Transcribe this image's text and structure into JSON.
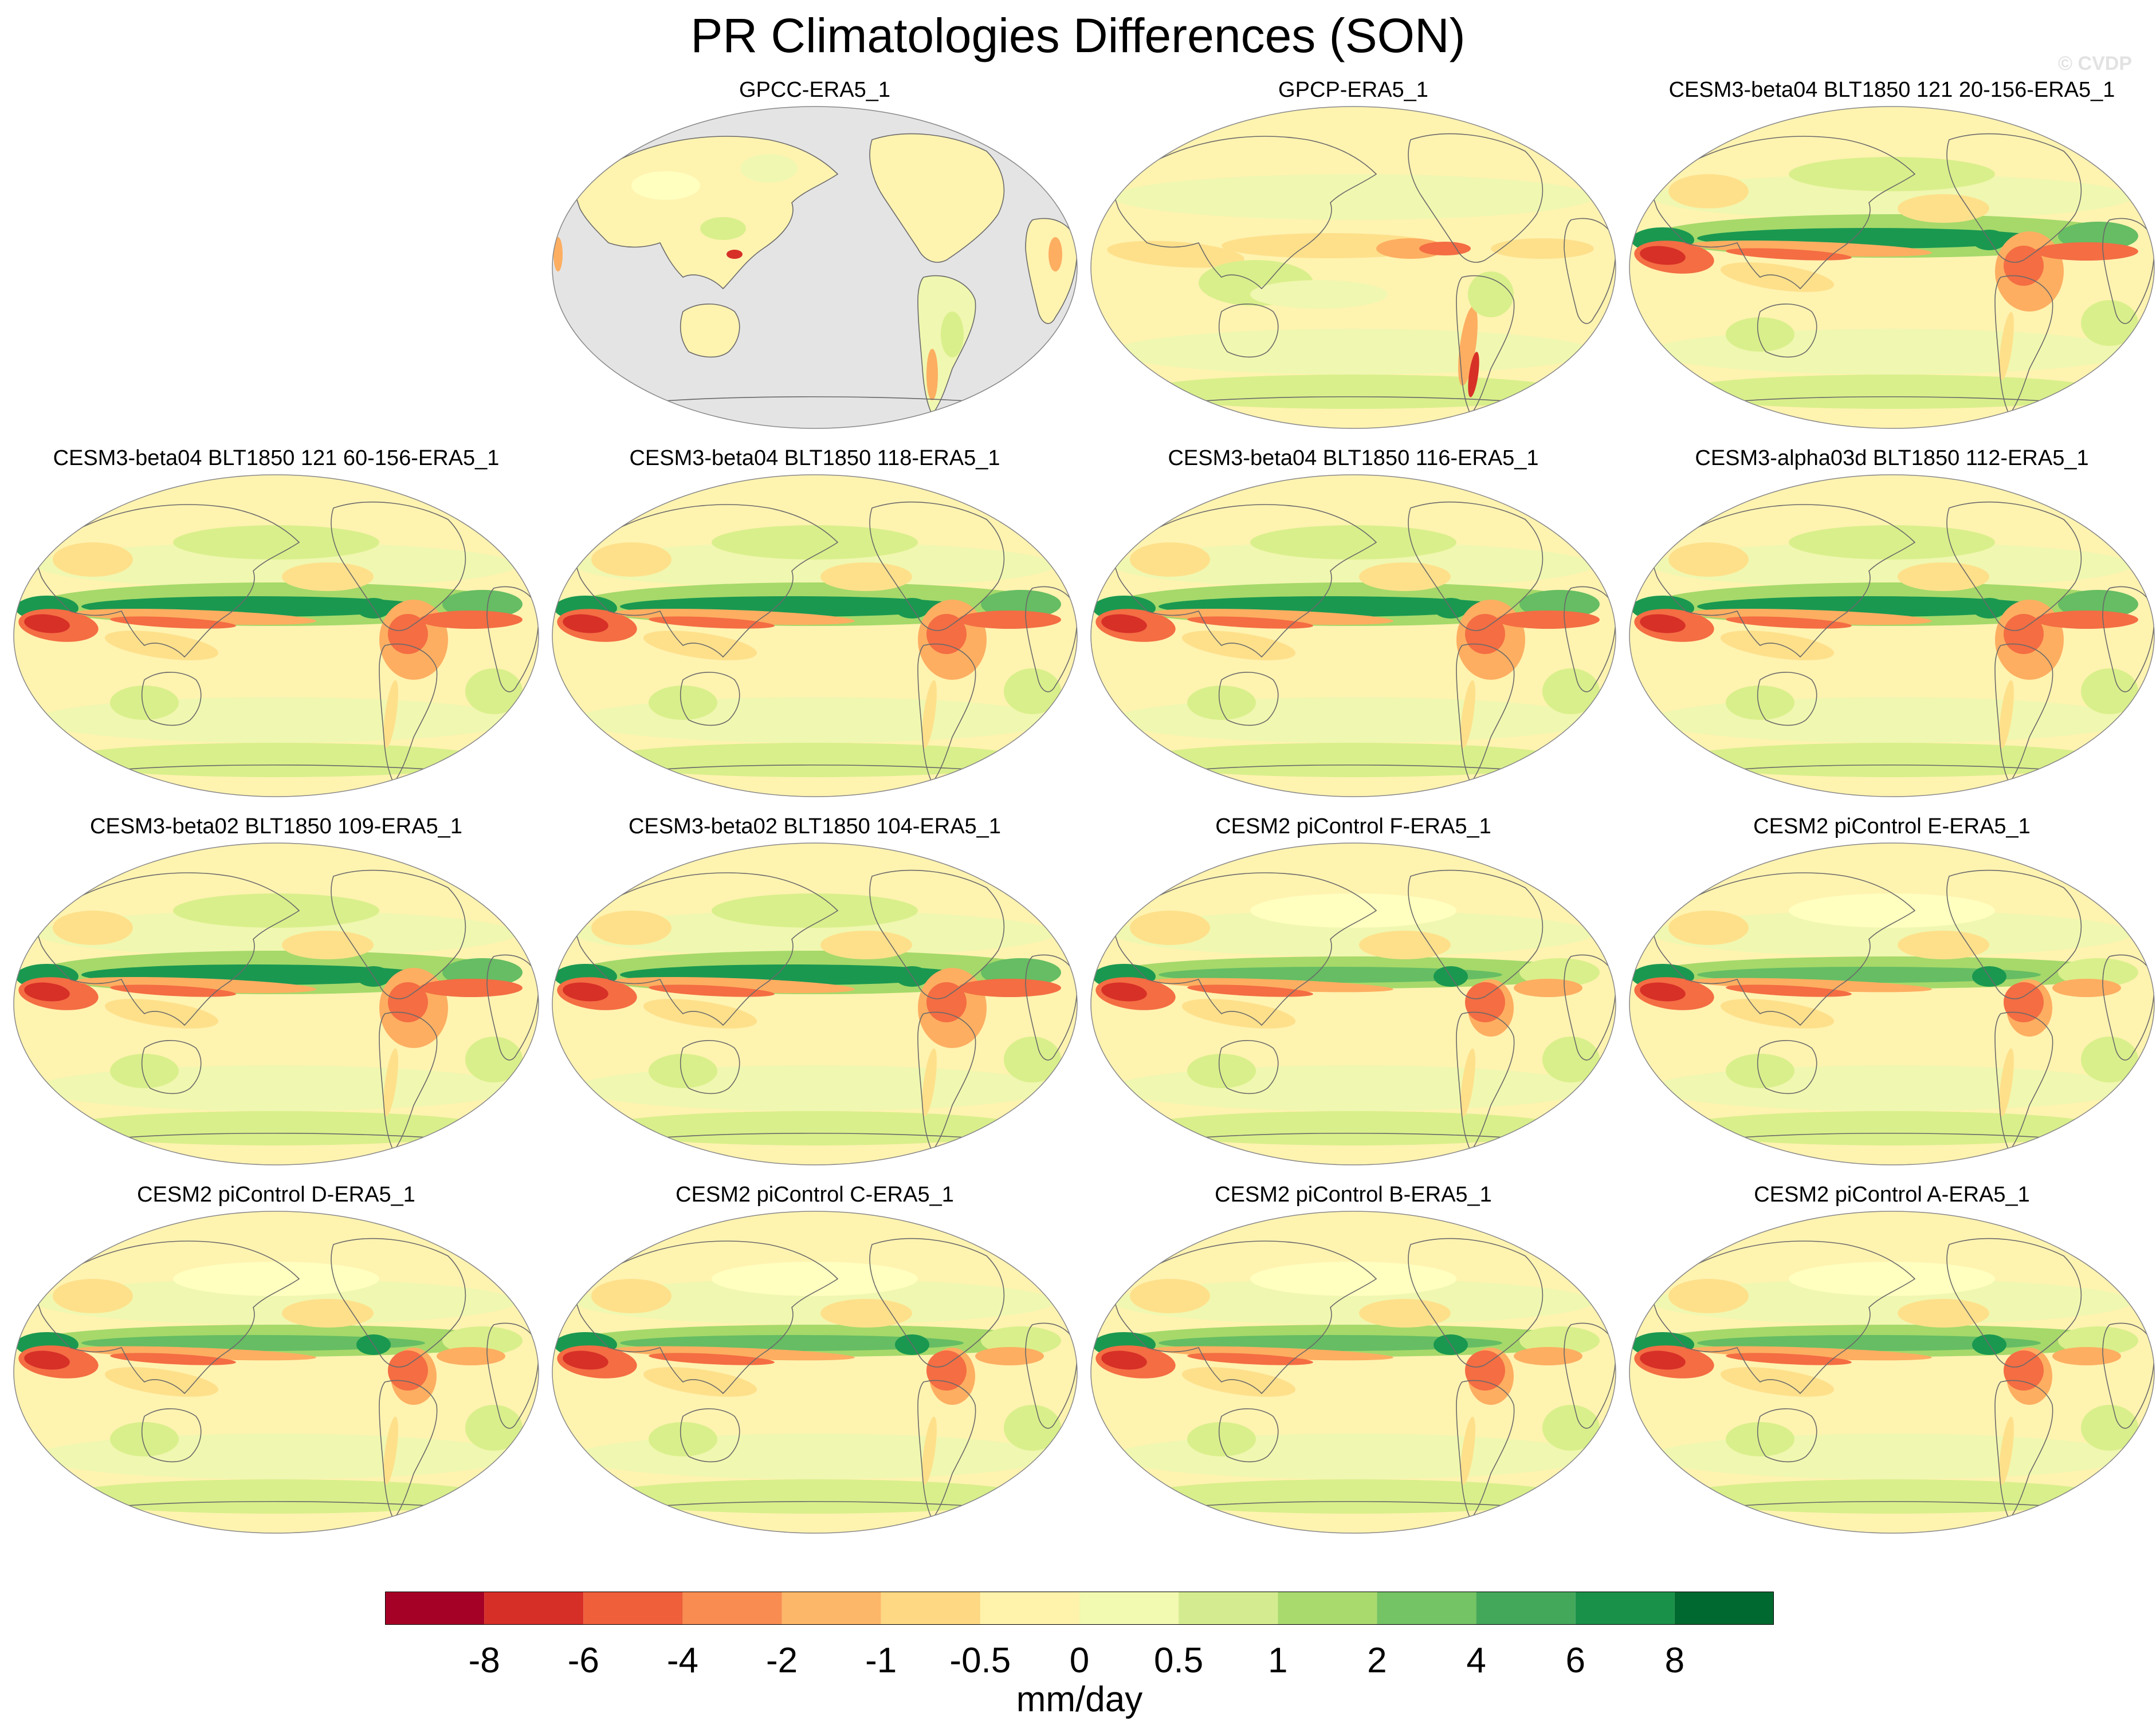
{
  "title": "PR Climatologies Differences (SON)",
  "watermark": "© CVDP",
  "colors": {
    "ocean_placeholder": "#e4e4e4",
    "coast": "#6a6a6a",
    "levels": [
      "#a50026",
      "#d73027",
      "#f46d43",
      "#fdae61",
      "#fee08b",
      "#ffffbf",
      "#fff3b0",
      "#f0f7b0",
      "#d9ef8b",
      "#a6d96a",
      "#66bd63",
      "#1a9850",
      "#006837",
      "#004d2a"
    ]
  },
  "colorbar": {
    "colors": [
      "#a50026",
      "#d62f27",
      "#ee5f3a",
      "#f88c51",
      "#fdb768",
      "#fed882",
      "#fff2aa",
      "#f2f9b0",
      "#d4ec8f",
      "#a9da6e",
      "#74c364",
      "#44a85a",
      "#1a9148",
      "#00692f"
    ],
    "ticks": [
      "-8",
      "-6",
      "-4",
      "-2",
      "-1",
      "-0.5",
      "0",
      "0.5",
      "1",
      "2",
      "4",
      "6",
      "8"
    ],
    "units": "mm/day"
  },
  "panels": [
    {
      "title": "GPCC-ERA5_1",
      "style": "obs_land"
    },
    {
      "title": "GPCP-ERA5_1",
      "style": "obs"
    },
    {
      "title": "CESM3-beta04 BLT1850 121 20-156-ERA5_1",
      "style": "cesm3"
    },
    {
      "title": "CESM3-beta04 BLT1850 121 60-156-ERA5_1",
      "style": "cesm3"
    },
    {
      "title": "CESM3-beta04 BLT1850 118-ERA5_1",
      "style": "cesm3"
    },
    {
      "title": "CESM3-beta04 BLT1850 116-ERA5_1",
      "style": "cesm3"
    },
    {
      "title": "CESM3-alpha03d BLT1850 112-ERA5_1",
      "style": "cesm3"
    },
    {
      "title": "CESM3-beta02 BLT1850 109-ERA5_1",
      "style": "cesm3"
    },
    {
      "title": "CESM3-beta02 BLT1850 104-ERA5_1",
      "style": "cesm3"
    },
    {
      "title": "CESM2 piControl F-ERA5_1",
      "style": "cesm2"
    },
    {
      "title": "CESM2 piControl E-ERA5_1",
      "style": "cesm2"
    },
    {
      "title": "CESM2 piControl D-ERA5_1",
      "style": "cesm2"
    },
    {
      "title": "CESM2 piControl C-ERA5_1",
      "style": "cesm2"
    },
    {
      "title": "CESM2 piControl B-ERA5_1",
      "style": "cesm2"
    },
    {
      "title": "CESM2 piControl A-ERA5_1",
      "style": "cesm2"
    }
  ]
}
